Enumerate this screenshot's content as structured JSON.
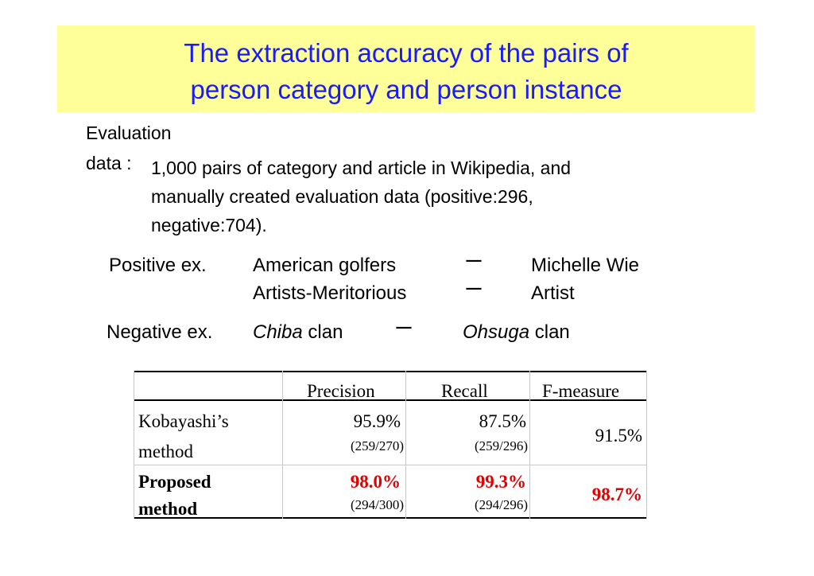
{
  "colors": {
    "title_bg": "#ffff99",
    "title_text": "#1a1aff",
    "highlight": "#e00000"
  },
  "title": {
    "line1": "The extraction accuracy of the pairs of",
    "line2": "person category and person instance"
  },
  "evaluation": {
    "label_line1": "Evaluation",
    "label_line2": "data :",
    "text_line1": "1,000 pairs of category and article in Wikipedia, and",
    "text_line2": "manually created evaluation data (positive:296,",
    "text_line3": "negative:704)."
  },
  "positive": {
    "label": "Positive ex.",
    "rows": [
      {
        "category": "American golfers",
        "dash": "ー",
        "instance": "Michelle Wie"
      },
      {
        "category": "Artists-Meritorious",
        "dash": "ー",
        "instance": "Artist"
      }
    ]
  },
  "negative": {
    "label": "Negative ex.",
    "category_italic": "Chiba",
    "category_rest": " clan",
    "dash": "ー",
    "instance_italic": "Ohsuga",
    "instance_rest": " clan"
  },
  "table": {
    "headers": [
      "",
      "Precision",
      "Recall",
      "F-measure"
    ],
    "rows": [
      {
        "method_line1": "Kobayashi’s",
        "method_line2": "method",
        "precision": "95.9%",
        "precision_frac": "(259/270)",
        "recall": "87.5%",
        "recall_frac": "(259/296)",
        "f_measure": "91.5%"
      },
      {
        "method_line1": "Proposed",
        "method_line2": "method",
        "precision": "98.0%",
        "precision_frac": "(294/300)",
        "recall": "99.3%",
        "recall_frac": "(294/296)",
        "f_measure": "98.7%"
      }
    ]
  }
}
